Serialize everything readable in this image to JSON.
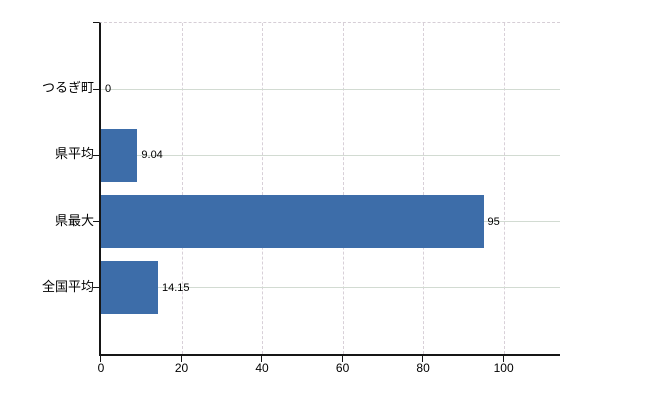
{
  "chart_data": {
    "type": "bar",
    "orientation": "horizontal",
    "title": "",
    "xlabel": "",
    "ylabel": "",
    "categories": [
      "つるぎ町",
      "県平均",
      "県最大",
      "全国平均"
    ],
    "values": [
      0,
      9.04,
      95,
      14.15
    ],
    "value_labels": [
      "0",
      "9.04",
      "95",
      "14.15"
    ],
    "x_ticks": [
      0,
      20,
      40,
      60,
      80,
      100
    ],
    "x_tick_labels": [
      "0",
      "20",
      "40",
      "60",
      "80",
      "100"
    ],
    "xlim": [
      0,
      114
    ],
    "grid": true,
    "legend": "none",
    "bar_color": "#3d6da9",
    "axis_color": "#161616",
    "vertical_grid_color": "#d8d0d8",
    "horizontal_grid_color": "#d2dbd2",
    "background_color": "#ffffff"
  }
}
